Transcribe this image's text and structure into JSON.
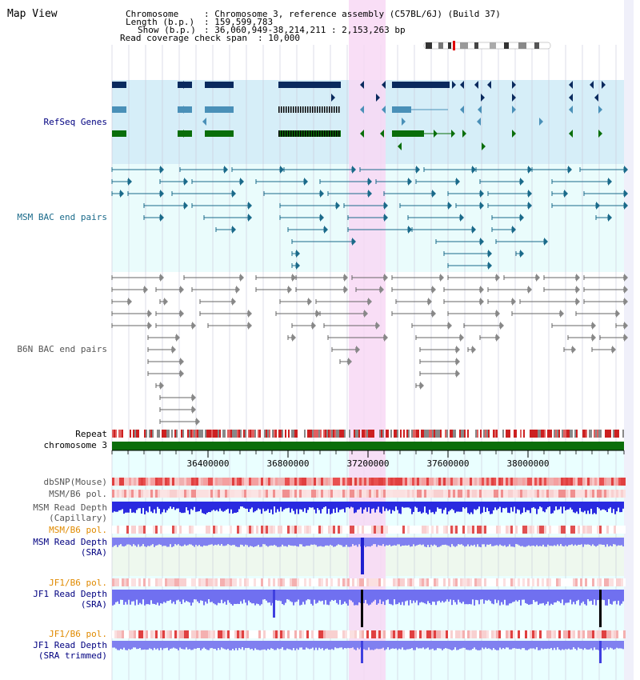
{
  "view_title": "Map View",
  "info": {
    "chromosome_label": "Chromosome",
    "chromosome_value": ": Chromosome 3, reference assembly (C57BL/6J) (Build 37)",
    "length_label": "Length (b.p.)",
    "length_value": ": 159,599,783",
    "show_label": "Show (b.p.)",
    "show_value": ": 36,060,949-38,214,211 : 2,153,263 bp",
    "coverage_label": "Read coverage check span",
    "coverage_value": ": 10,000"
  },
  "tracks": {
    "refseq": "RefSeq Genes",
    "msm_bac": "MSM BAC end pairs",
    "b6n_bac": "B6N BAC end pairs",
    "repeat": "Repeat",
    "chromosome": "chromosome 3",
    "dbsnp": "dbSNP(Mouse)",
    "msm_b6_pol_1": "MSM/B6 pol.",
    "msm_read_depth_cap_1": "MSM Read Depth",
    "msm_read_depth_cap_2": "(Capillary)",
    "msm_b6_pol_2": "MSM/B6 pol.",
    "msm_read_depth_sra_1": "MSM Read Depth",
    "msm_read_depth_sra_2": "(SRA)",
    "jf1_b6_pol_1": "JF1/B6 pol.",
    "jf1_read_depth_sra_1": "JF1 Read Depth",
    "jf1_read_depth_sra_2": "(SRA)",
    "jf1_b6_pol_2": "JF1/B6 pol.",
    "jf1_read_depth_trim_1": "JF1 Read Depth",
    "jf1_read_depth_trim_2": "(SRA trimmed)"
  },
  "axis": {
    "ticks": [
      "36400000",
      "36800000",
      "37200000",
      "37600000",
      "38000000"
    ]
  },
  "colors": {
    "gene_dark": "#0a2a5e",
    "gene_mid": "#4a90b8",
    "gene_green": "#0a6e0a",
    "msm_bac": "#1a6a8a",
    "b6n_bac": "#666666",
    "highlight": "#f8d8f4",
    "chromosome": "#0a6e0a",
    "msm_label": "#000080",
    "pol_label": "#e08a00"
  }
}
